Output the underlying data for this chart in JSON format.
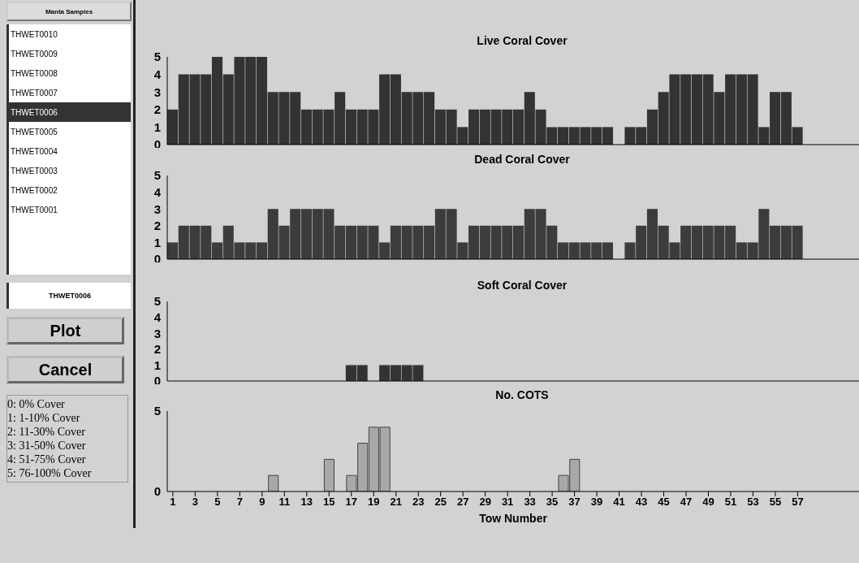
{
  "chart_data": [
    {
      "type": "other",
      "title": "Manta Samples",
      "annotations": [
        "THWET0010",
        "THWET0009",
        "THWET0008",
        "THWET0007",
        "THWET0006",
        "THWET0005",
        "THWET0004",
        "THWET0003",
        "THWET0002",
        "THWET0001",
        "THWET0006",
        "Plot",
        "Cancel",
        "0: 0% Cover",
        "1: 1-10% Cover",
        "2: 11-30% Cover",
        "3: 31-50% Cover",
        "4: 51-75% Cover",
        "5: 76-100% Cover"
      ]
    },
    {
      "type": "bar",
      "title": "Live Coral Cover",
      "color": "#333333",
      "tick_labels": "y",
      "xlim": [
        0.5,
        62.5
      ],
      "ylim": [
        0,
        5
      ],
      "yticks": [
        0,
        1,
        2,
        3,
        4,
        5
      ],
      "x": [
        1,
        2,
        3,
        4,
        5,
        6,
        7,
        8,
        9,
        10,
        11,
        12,
        13,
        14,
        15,
        16,
        17,
        18,
        19,
        20,
        21,
        22,
        23,
        24,
        25,
        26,
        27,
        28,
        29,
        30,
        31,
        32,
        33,
        34,
        35,
        36,
        37,
        38,
        39,
        40,
        41,
        42,
        43,
        44,
        45,
        46,
        47,
        48,
        49,
        50,
        51,
        52,
        53,
        54,
        55,
        56,
        57
      ],
      "values": [
        2,
        4,
        4,
        4,
        5,
        4,
        5,
        5,
        5,
        3,
        3,
        3,
        2,
        2,
        2,
        3,
        2,
        2,
        2,
        4,
        4,
        3,
        3,
        3,
        2,
        2,
        1,
        2,
        2,
        2,
        2,
        2,
        3,
        2,
        1,
        1,
        1,
        1,
        1,
        1,
        0,
        1,
        1,
        2,
        3,
        4,
        4,
        4,
        4,
        3,
        4,
        4,
        4,
        1,
        3,
        3,
        1
      ]
    },
    {
      "type": "bar",
      "title": "Dead Coral Cover",
      "color": "#3c3c3c",
      "tick_labels": "y",
      "xlim": [
        0.5,
        62.5
      ],
      "ylim": [
        0,
        5
      ],
      "yticks": [
        0,
        1,
        2,
        3,
        4,
        5
      ],
      "x": [
        1,
        2,
        3,
        4,
        5,
        6,
        7,
        8,
        9,
        10,
        11,
        12,
        13,
        14,
        15,
        16,
        17,
        18,
        19,
        20,
        21,
        22,
        23,
        24,
        25,
        26,
        27,
        28,
        29,
        30,
        31,
        32,
        33,
        34,
        35,
        36,
        37,
        38,
        39,
        40,
        41,
        42,
        43,
        44,
        45,
        46,
        47,
        48,
        49,
        50,
        51,
        52,
        53,
        54,
        55,
        56,
        57
      ],
      "values": [
        1,
        2,
        2,
        2,
        1,
        2,
        1,
        1,
        1,
        3,
        2,
        3,
        3,
        3,
        3,
        2,
        2,
        2,
        2,
        1,
        2,
        2,
        2,
        2,
        3,
        3,
        1,
        2,
        2,
        2,
        2,
        2,
        3,
        3,
        2,
        1,
        1,
        1,
        1,
        1,
        0,
        1,
        2,
        3,
        2,
        1,
        2,
        2,
        2,
        2,
        2,
        1,
        1,
        3,
        2,
        2,
        2
      ]
    },
    {
      "type": "bar",
      "title": "Soft Coral Cover",
      "color": "#333333",
      "tick_labels": "y",
      "xlim": [
        0.5,
        62.5
      ],
      "ylim": [
        0,
        5
      ],
      "yticks": [
        0,
        1,
        2,
        3,
        4,
        5
      ],
      "x": [
        1,
        2,
        3,
        4,
        5,
        6,
        7,
        8,
        9,
        10,
        11,
        12,
        13,
        14,
        15,
        16,
        17,
        18,
        19,
        20,
        21,
        22,
        23,
        24,
        25,
        26,
        27,
        28,
        29,
        30,
        31,
        32,
        33,
        34,
        35,
        36,
        37,
        38,
        39,
        40,
        41,
        42,
        43,
        44,
        45,
        46,
        47,
        48,
        49,
        50,
        51,
        52,
        53,
        54,
        55,
        56,
        57
      ],
      "values": [
        0,
        0,
        0,
        0,
        0,
        0,
        0,
        0,
        0,
        0,
        0,
        0,
        0,
        0,
        0,
        0,
        1,
        1,
        0,
        1,
        1,
        1,
        1,
        0,
        0,
        0,
        0,
        0,
        0,
        0,
        0,
        0,
        0,
        0,
        0,
        0,
        0,
        0,
        0,
        0,
        0,
        0,
        0,
        0,
        0,
        0,
        0,
        0,
        0,
        0,
        0,
        0,
        0,
        0,
        0,
        0,
        0
      ]
    },
    {
      "type": "bar",
      "title": "No. COTS",
      "xlabel": "Tow Number",
      "color": "#a8a8a8",
      "xlim": [
        0.5,
        62.5
      ],
      "xticks": [
        1,
        3,
        5,
        7,
        9,
        11,
        13,
        15,
        17,
        19,
        21,
        23,
        25,
        27,
        29,
        31,
        33,
        35,
        37,
        39,
        41,
        43,
        45,
        47,
        49,
        51,
        53,
        55,
        57
      ],
      "ylim": [
        0,
        5
      ],
      "yticks": [
        0,
        5
      ],
      "x": [
        1,
        2,
        3,
        4,
        5,
        6,
        7,
        8,
        9,
        10,
        11,
        12,
        13,
        14,
        15,
        16,
        17,
        18,
        19,
        20,
        21,
        22,
        23,
        24,
        25,
        26,
        27,
        28,
        29,
        30,
        31,
        32,
        33,
        34,
        35,
        36,
        37,
        38,
        39,
        40,
        41,
        42,
        43,
        44,
        45,
        46,
        47,
        48,
        49,
        50,
        51,
        52,
        53,
        54,
        55,
        56,
        57
      ],
      "values": [
        0,
        0,
        0,
        0,
        0,
        0,
        0,
        0,
        0,
        1,
        0,
        0,
        0,
        0,
        2,
        0,
        1,
        3,
        4,
        4,
        0,
        0,
        0,
        0,
        0,
        0,
        0,
        0,
        0,
        0,
        0,
        0,
        0,
        0,
        0,
        1,
        2,
        0,
        0,
        0,
        0,
        0,
        0,
        0,
        0,
        0,
        0,
        0,
        0,
        0,
        0,
        0,
        0,
        0,
        0,
        0,
        0
      ]
    }
  ]
}
